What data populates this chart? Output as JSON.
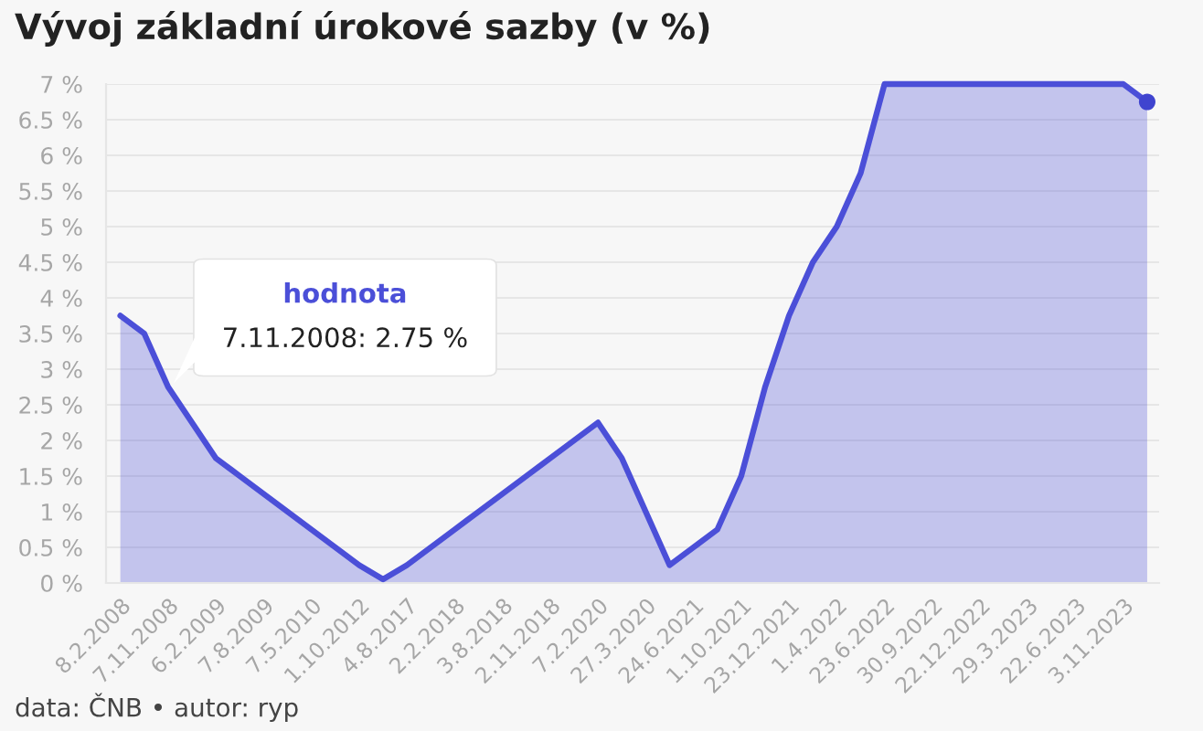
{
  "chart_data": {
    "type": "area",
    "title": "Vývoj základní úrokové sazby (v %)",
    "categories": [
      "8.2.2008",
      null,
      "7.11.2008",
      null,
      "6.2.2009",
      null,
      "7.8.2009",
      null,
      "7.5.2010",
      null,
      "1.10.2012",
      null,
      "4.8.2017",
      null,
      "2.2.2018",
      null,
      "3.8.2018",
      null,
      "2.11.2018",
      null,
      "7.2.2020",
      null,
      "27.3.2020",
      null,
      "24.6.2021",
      null,
      "1.10.2021",
      null,
      "23.12.2021",
      null,
      "1.4.2022",
      null,
      "23.6.2022",
      null,
      "30.9.2022",
      null,
      "22.12.2022",
      null,
      "29.3.2023",
      null,
      "22.6.2023",
      null,
      "3.11.2023",
      null
    ],
    "series": [
      {
        "name": "hodnota",
        "color": "#4b4fd8",
        "values": [
          3.75,
          3.5,
          2.75,
          2.25,
          1.75,
          1.5,
          1.25,
          1.0,
          0.75,
          0.5,
          0.25,
          0.05,
          0.25,
          0.5,
          0.75,
          1.0,
          1.25,
          1.5,
          1.75,
          2.0,
          2.25,
          1.75,
          1.0,
          0.25,
          0.5,
          0.75,
          1.5,
          2.75,
          3.75,
          4.5,
          5.0,
          5.75,
          7.0,
          7.0,
          7.0,
          7.0,
          7.0,
          7.0,
          7.0,
          7.0,
          7.0,
          7.0,
          7.0,
          6.75
        ]
      },
      {
        "type": "scatter",
        "color": "#3f44cf",
        "values": [
          null,
          null,
          null,
          null,
          null,
          null,
          null,
          null,
          null,
          null,
          null,
          null,
          null,
          null,
          null,
          null,
          null,
          null,
          null,
          null,
          null,
          null,
          null,
          null,
          null,
          null,
          null,
          null,
          null,
          null,
          null,
          null,
          null,
          null,
          null,
          null,
          null,
          null,
          null,
          null,
          null,
          null,
          null,
          6.75
        ]
      }
    ],
    "ylim": [
      0,
      7
    ],
    "yticks": [
      {
        "value": 0,
        "label": "0 %"
      },
      {
        "value": 0.5,
        "label": "0.5 %"
      },
      {
        "value": 1,
        "label": "1 %"
      },
      {
        "value": 1.5,
        "label": "1.5 %"
      },
      {
        "value": 2,
        "label": "2 %"
      },
      {
        "value": 2.5,
        "label": "2.5 %"
      },
      {
        "value": 3,
        "label": "3 %"
      },
      {
        "value": 3.5,
        "label": "3.5 %"
      },
      {
        "value": 4,
        "label": "4 %"
      },
      {
        "value": 4.5,
        "label": "4.5 %"
      },
      {
        "value": 5,
        "label": "5 %"
      },
      {
        "value": 5.5,
        "label": "5.5 %"
      },
      {
        "value": 6,
        "label": "6 %"
      },
      {
        "value": 6.5,
        "label": "6.5 %"
      },
      {
        "value": 7,
        "label": "7 %"
      }
    ],
    "grid": "y",
    "annotations": [
      {
        "text": "7.11.2008: 2.75 %",
        "x": "7.11.2008",
        "y": 2.75
      },
      "data: ČNB • autor: ryp"
    ]
  }
}
